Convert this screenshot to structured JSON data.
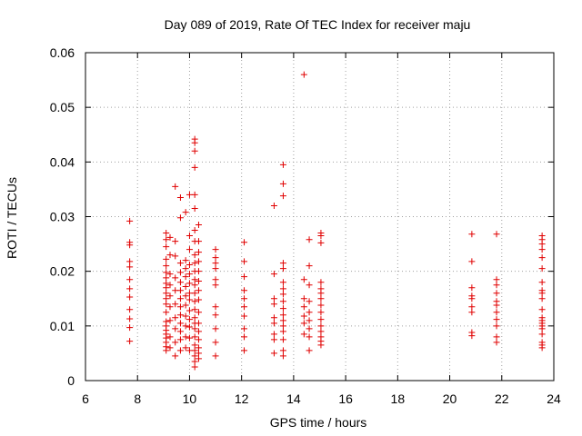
{
  "chart_data": {
    "type": "scatter",
    "title": "Day 089 of 2019, Rate Of TEC Index for receiver maju",
    "xlabel": "GPS time / hours",
    "ylabel": "ROTI / TECUs",
    "xlim": [
      6,
      24
    ],
    "ylim": [
      0,
      0.06
    ],
    "xticks": [
      6,
      8,
      10,
      12,
      14,
      16,
      18,
      20,
      22,
      24
    ],
    "xtick_labels": [
      "6",
      "8",
      "10",
      "12",
      "14",
      "16",
      "18",
      "20",
      "22",
      "24"
    ],
    "yticks": [
      0,
      0.01,
      0.02,
      0.03,
      0.04,
      0.05,
      0.06
    ],
    "ytick_labels": [
      "0",
      "0.01",
      "0.02",
      "0.03",
      "0.04",
      "0.05",
      "0.06"
    ],
    "grid": true,
    "marker": "+",
    "color": "#e00000",
    "series": [
      {
        "name": "ROTI",
        "points": [
          [
            7.7,
            0.0072
          ],
          [
            7.7,
            0.0097
          ],
          [
            7.7,
            0.0113
          ],
          [
            7.7,
            0.013
          ],
          [
            7.7,
            0.0153
          ],
          [
            7.7,
            0.0168
          ],
          [
            7.7,
            0.0185
          ],
          [
            7.7,
            0.0208
          ],
          [
            7.7,
            0.0218
          ],
          [
            7.7,
            0.0248
          ],
          [
            7.7,
            0.0253
          ],
          [
            7.7,
            0.0292
          ],
          [
            9.1,
            0.0055
          ],
          [
            9.1,
            0.0062
          ],
          [
            9.1,
            0.007
          ],
          [
            9.1,
            0.0078
          ],
          [
            9.1,
            0.0085
          ],
          [
            9.1,
            0.0092
          ],
          [
            9.1,
            0.01
          ],
          [
            9.1,
            0.0108
          ],
          [
            9.1,
            0.0125
          ],
          [
            9.1,
            0.014
          ],
          [
            9.1,
            0.015
          ],
          [
            9.1,
            0.016
          ],
          [
            9.1,
            0.017
          ],
          [
            9.1,
            0.0178
          ],
          [
            9.1,
            0.0188
          ],
          [
            9.1,
            0.0198
          ],
          [
            9.1,
            0.021
          ],
          [
            9.1,
            0.0222
          ],
          [
            9.1,
            0.0245
          ],
          [
            9.1,
            0.0258
          ],
          [
            9.1,
            0.027
          ],
          [
            9.25,
            0.006
          ],
          [
            9.25,
            0.008
          ],
          [
            9.25,
            0.011
          ],
          [
            9.25,
            0.0135
          ],
          [
            9.25,
            0.0155
          ],
          [
            9.25,
            0.0175
          ],
          [
            9.25,
            0.0195
          ],
          [
            9.25,
            0.023
          ],
          [
            9.25,
            0.0262
          ],
          [
            9.45,
            0.0045
          ],
          [
            9.45,
            0.007
          ],
          [
            9.45,
            0.0095
          ],
          [
            9.45,
            0.0115
          ],
          [
            9.45,
            0.014
          ],
          [
            9.45,
            0.0165
          ],
          [
            9.45,
            0.0188
          ],
          [
            9.45,
            0.0228
          ],
          [
            9.45,
            0.0255
          ],
          [
            9.45,
            0.0355
          ],
          [
            9.65,
            0.0055
          ],
          [
            9.65,
            0.0075
          ],
          [
            9.65,
            0.009
          ],
          [
            9.65,
            0.0105
          ],
          [
            9.65,
            0.012
          ],
          [
            9.65,
            0.0135
          ],
          [
            9.65,
            0.015
          ],
          [
            9.65,
            0.0165
          ],
          [
            9.65,
            0.018
          ],
          [
            9.65,
            0.0198
          ],
          [
            9.65,
            0.0215
          ],
          [
            9.65,
            0.0298
          ],
          [
            9.65,
            0.0335
          ],
          [
            9.85,
            0.006
          ],
          [
            9.85,
            0.008
          ],
          [
            9.85,
            0.01
          ],
          [
            9.85,
            0.0118
          ],
          [
            9.85,
            0.0138
          ],
          [
            9.85,
            0.0155
          ],
          [
            9.85,
            0.0172
          ],
          [
            9.85,
            0.019
          ],
          [
            9.85,
            0.0205
          ],
          [
            9.85,
            0.022
          ],
          [
            9.85,
            0.0308
          ],
          [
            10.0,
            0.0055
          ],
          [
            10.0,
            0.0078
          ],
          [
            10.0,
            0.0098
          ],
          [
            10.0,
            0.0112
          ],
          [
            10.0,
            0.0128
          ],
          [
            10.0,
            0.0148
          ],
          [
            10.0,
            0.016
          ],
          [
            10.0,
            0.0178
          ],
          [
            10.0,
            0.0195
          ],
          [
            10.0,
            0.0212
          ],
          [
            10.0,
            0.024
          ],
          [
            10.0,
            0.0265
          ],
          [
            10.0,
            0.034
          ],
          [
            10.2,
            0.0025
          ],
          [
            10.2,
            0.0035
          ],
          [
            10.2,
            0.0045
          ],
          [
            10.2,
            0.0055
          ],
          [
            10.2,
            0.0065
          ],
          [
            10.2,
            0.008
          ],
          [
            10.2,
            0.0095
          ],
          [
            10.2,
            0.0105
          ],
          [
            10.2,
            0.0115
          ],
          [
            10.2,
            0.013
          ],
          [
            10.2,
            0.0145
          ],
          [
            10.2,
            0.016
          ],
          [
            10.2,
            0.0175
          ],
          [
            10.2,
            0.0185
          ],
          [
            10.2,
            0.02
          ],
          [
            10.2,
            0.0215
          ],
          [
            10.2,
            0.023
          ],
          [
            10.2,
            0.0255
          ],
          [
            10.2,
            0.0275
          ],
          [
            10.2,
            0.0315
          ],
          [
            10.2,
            0.034
          ],
          [
            10.2,
            0.039
          ],
          [
            10.2,
            0.042
          ],
          [
            10.2,
            0.0435
          ],
          [
            10.2,
            0.0442
          ],
          [
            10.35,
            0.004
          ],
          [
            10.35,
            0.005
          ],
          [
            10.35,
            0.006
          ],
          [
            10.35,
            0.0075
          ],
          [
            10.35,
            0.009
          ],
          [
            10.35,
            0.0105
          ],
          [
            10.35,
            0.0125
          ],
          [
            10.35,
            0.0148
          ],
          [
            10.35,
            0.0165
          ],
          [
            10.35,
            0.0182
          ],
          [
            10.35,
            0.02
          ],
          [
            10.35,
            0.0218
          ],
          [
            10.35,
            0.0235
          ],
          [
            10.35,
            0.0255
          ],
          [
            10.35,
            0.0285
          ],
          [
            11.0,
            0.0045
          ],
          [
            11.0,
            0.007
          ],
          [
            11.0,
            0.0095
          ],
          [
            11.0,
            0.012
          ],
          [
            11.0,
            0.0135
          ],
          [
            11.0,
            0.0175
          ],
          [
            11.0,
            0.0185
          ],
          [
            11.0,
            0.0205
          ],
          [
            11.0,
            0.0215
          ],
          [
            11.0,
            0.0225
          ],
          [
            11.0,
            0.024
          ],
          [
            12.1,
            0.0055
          ],
          [
            12.1,
            0.008
          ],
          [
            12.1,
            0.0095
          ],
          [
            12.1,
            0.0118
          ],
          [
            12.1,
            0.0135
          ],
          [
            12.1,
            0.015
          ],
          [
            12.1,
            0.0165
          ],
          [
            12.1,
            0.019
          ],
          [
            12.1,
            0.0218
          ],
          [
            12.1,
            0.0253
          ],
          [
            13.25,
            0.005
          ],
          [
            13.25,
            0.0075
          ],
          [
            13.25,
            0.0085
          ],
          [
            13.25,
            0.0105
          ],
          [
            13.25,
            0.0115
          ],
          [
            13.25,
            0.014
          ],
          [
            13.25,
            0.015
          ],
          [
            13.25,
            0.0195
          ],
          [
            13.25,
            0.032
          ],
          [
            13.6,
            0.0045
          ],
          [
            13.6,
            0.0055
          ],
          [
            13.6,
            0.0075
          ],
          [
            13.6,
            0.009
          ],
          [
            13.6,
            0.01
          ],
          [
            13.6,
            0.011
          ],
          [
            13.6,
            0.012
          ],
          [
            13.6,
            0.0132
          ],
          [
            13.6,
            0.0145
          ],
          [
            13.6,
            0.0158
          ],
          [
            13.6,
            0.0168
          ],
          [
            13.6,
            0.018
          ],
          [
            13.6,
            0.0205
          ],
          [
            13.6,
            0.0215
          ],
          [
            13.6,
            0.0338
          ],
          [
            13.6,
            0.036
          ],
          [
            13.6,
            0.0395
          ],
          [
            14.4,
            0.0085
          ],
          [
            14.4,
            0.0105
          ],
          [
            14.4,
            0.0118
          ],
          [
            14.4,
            0.0135
          ],
          [
            14.4,
            0.015
          ],
          [
            14.4,
            0.0185
          ],
          [
            14.4,
            0.056
          ],
          [
            14.6,
            0.0055
          ],
          [
            14.6,
            0.008
          ],
          [
            14.6,
            0.0095
          ],
          [
            14.6,
            0.011
          ],
          [
            14.6,
            0.0125
          ],
          [
            14.6,
            0.0145
          ],
          [
            14.6,
            0.0175
          ],
          [
            14.6,
            0.021
          ],
          [
            14.6,
            0.0258
          ],
          [
            15.05,
            0.0065
          ],
          [
            15.05,
            0.0072
          ],
          [
            15.05,
            0.008
          ],
          [
            15.05,
            0.009
          ],
          [
            15.05,
            0.01
          ],
          [
            15.05,
            0.0112
          ],
          [
            15.05,
            0.0125
          ],
          [
            15.05,
            0.0138
          ],
          [
            15.05,
            0.015
          ],
          [
            15.05,
            0.016
          ],
          [
            15.05,
            0.0168
          ],
          [
            15.05,
            0.018
          ],
          [
            15.05,
            0.0252
          ],
          [
            15.05,
            0.0265
          ],
          [
            15.05,
            0.027
          ],
          [
            20.85,
            0.0082
          ],
          [
            20.85,
            0.0088
          ],
          [
            20.85,
            0.0125
          ],
          [
            20.85,
            0.0135
          ],
          [
            20.85,
            0.015
          ],
          [
            20.85,
            0.0155
          ],
          [
            20.85,
            0.017
          ],
          [
            20.85,
            0.0218
          ],
          [
            20.85,
            0.0268
          ],
          [
            21.8,
            0.007
          ],
          [
            21.8,
            0.008
          ],
          [
            21.8,
            0.01
          ],
          [
            21.8,
            0.0112
          ],
          [
            21.8,
            0.0125
          ],
          [
            21.8,
            0.0138
          ],
          [
            21.8,
            0.0145
          ],
          [
            21.8,
            0.016
          ],
          [
            21.8,
            0.0175
          ],
          [
            21.8,
            0.0185
          ],
          [
            21.8,
            0.0268
          ],
          [
            23.55,
            0.006
          ],
          [
            23.55,
            0.0065
          ],
          [
            23.55,
            0.007
          ],
          [
            23.55,
            0.0085
          ],
          [
            23.55,
            0.0095
          ],
          [
            23.55,
            0.01
          ],
          [
            23.55,
            0.0105
          ],
          [
            23.55,
            0.011
          ],
          [
            23.55,
            0.0115
          ],
          [
            23.55,
            0.013
          ],
          [
            23.55,
            0.015
          ],
          [
            23.55,
            0.016
          ],
          [
            23.55,
            0.0165
          ],
          [
            23.55,
            0.018
          ],
          [
            23.55,
            0.0205
          ],
          [
            23.55,
            0.0225
          ],
          [
            23.55,
            0.024
          ],
          [
            23.55,
            0.025
          ],
          [
            23.55,
            0.0258
          ],
          [
            23.55,
            0.0265
          ]
        ]
      }
    ]
  }
}
